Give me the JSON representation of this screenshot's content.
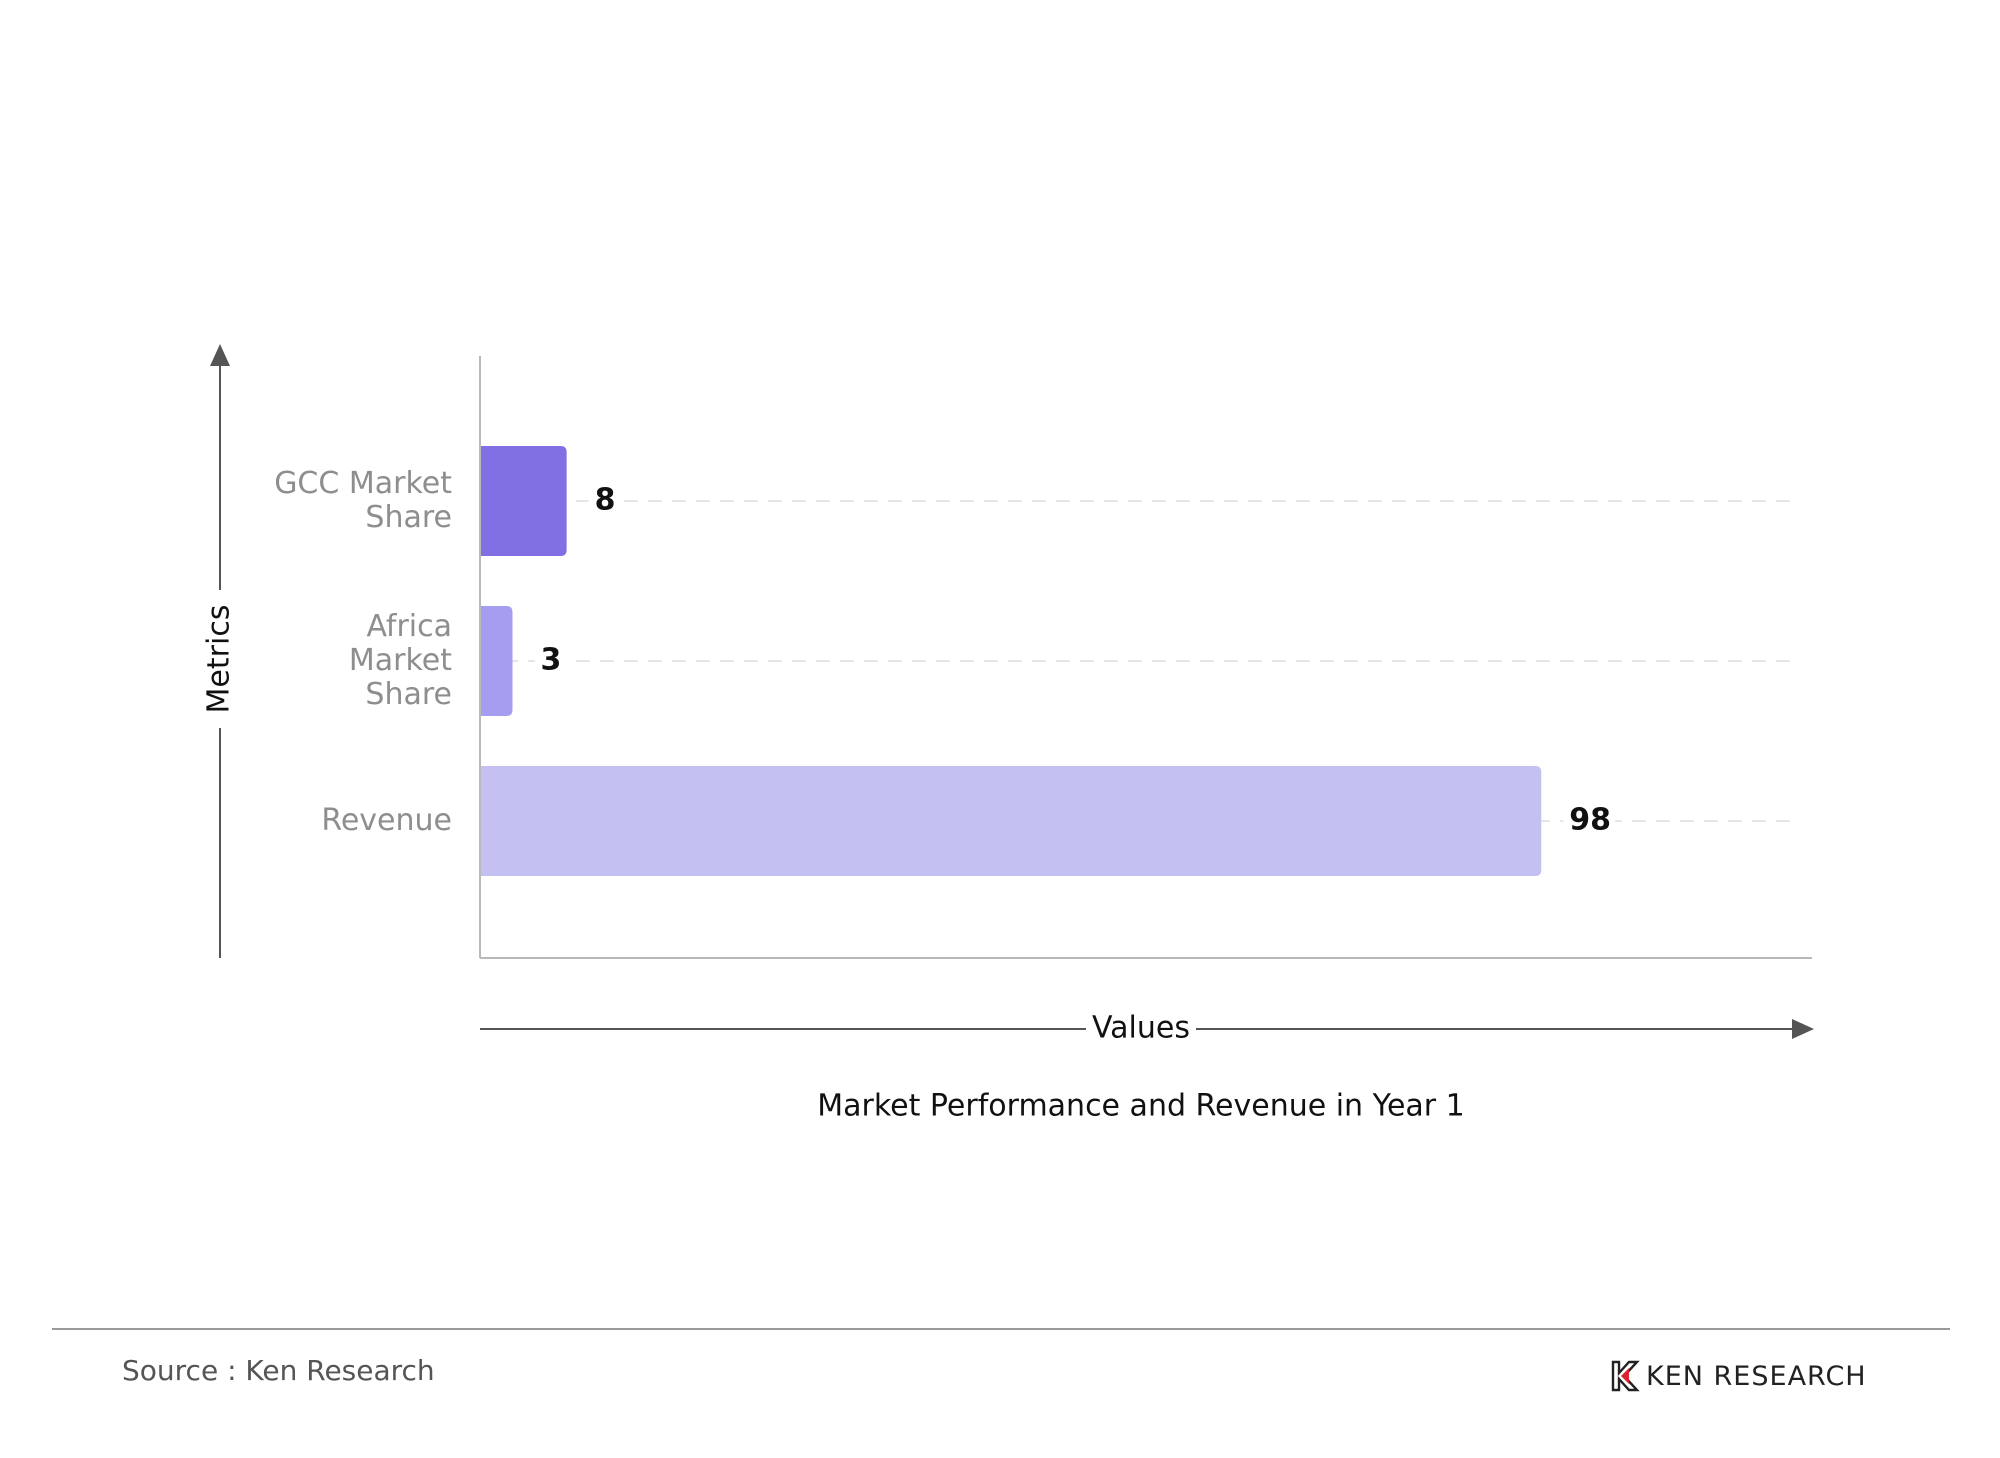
{
  "chart_data": {
    "type": "bar",
    "orientation": "horizontal",
    "categories": [
      "GCC Market Share",
      "Africa Market Share",
      "Revenue"
    ],
    "category_lines": [
      [
        "GCC Market",
        "Share"
      ],
      [
        "Africa",
        "Market",
        "Share"
      ],
      [
        "Revenue"
      ]
    ],
    "values": [
      8,
      3,
      98
    ],
    "value_labels": [
      "8",
      "3",
      "98"
    ],
    "bar_colors": [
      "#8170e3",
      "#a49df0",
      "#c4c0f2"
    ],
    "title": "Market Performance and Revenue in Year 1",
    "xlabel": "Values",
    "ylabel": "Metrics",
    "xlim": [
      0,
      123
    ],
    "grid": "dashed horizontal guide per bar",
    "legend": "none"
  },
  "footer": {
    "source": "Source : Ken Research",
    "logo_text": "KEN RESEARCH"
  },
  "colors": {
    "axis": "#555555",
    "gridline": "#e6e6e6",
    "category_text": "#8e8e8e",
    "logo_accent": "#d8262e"
  }
}
